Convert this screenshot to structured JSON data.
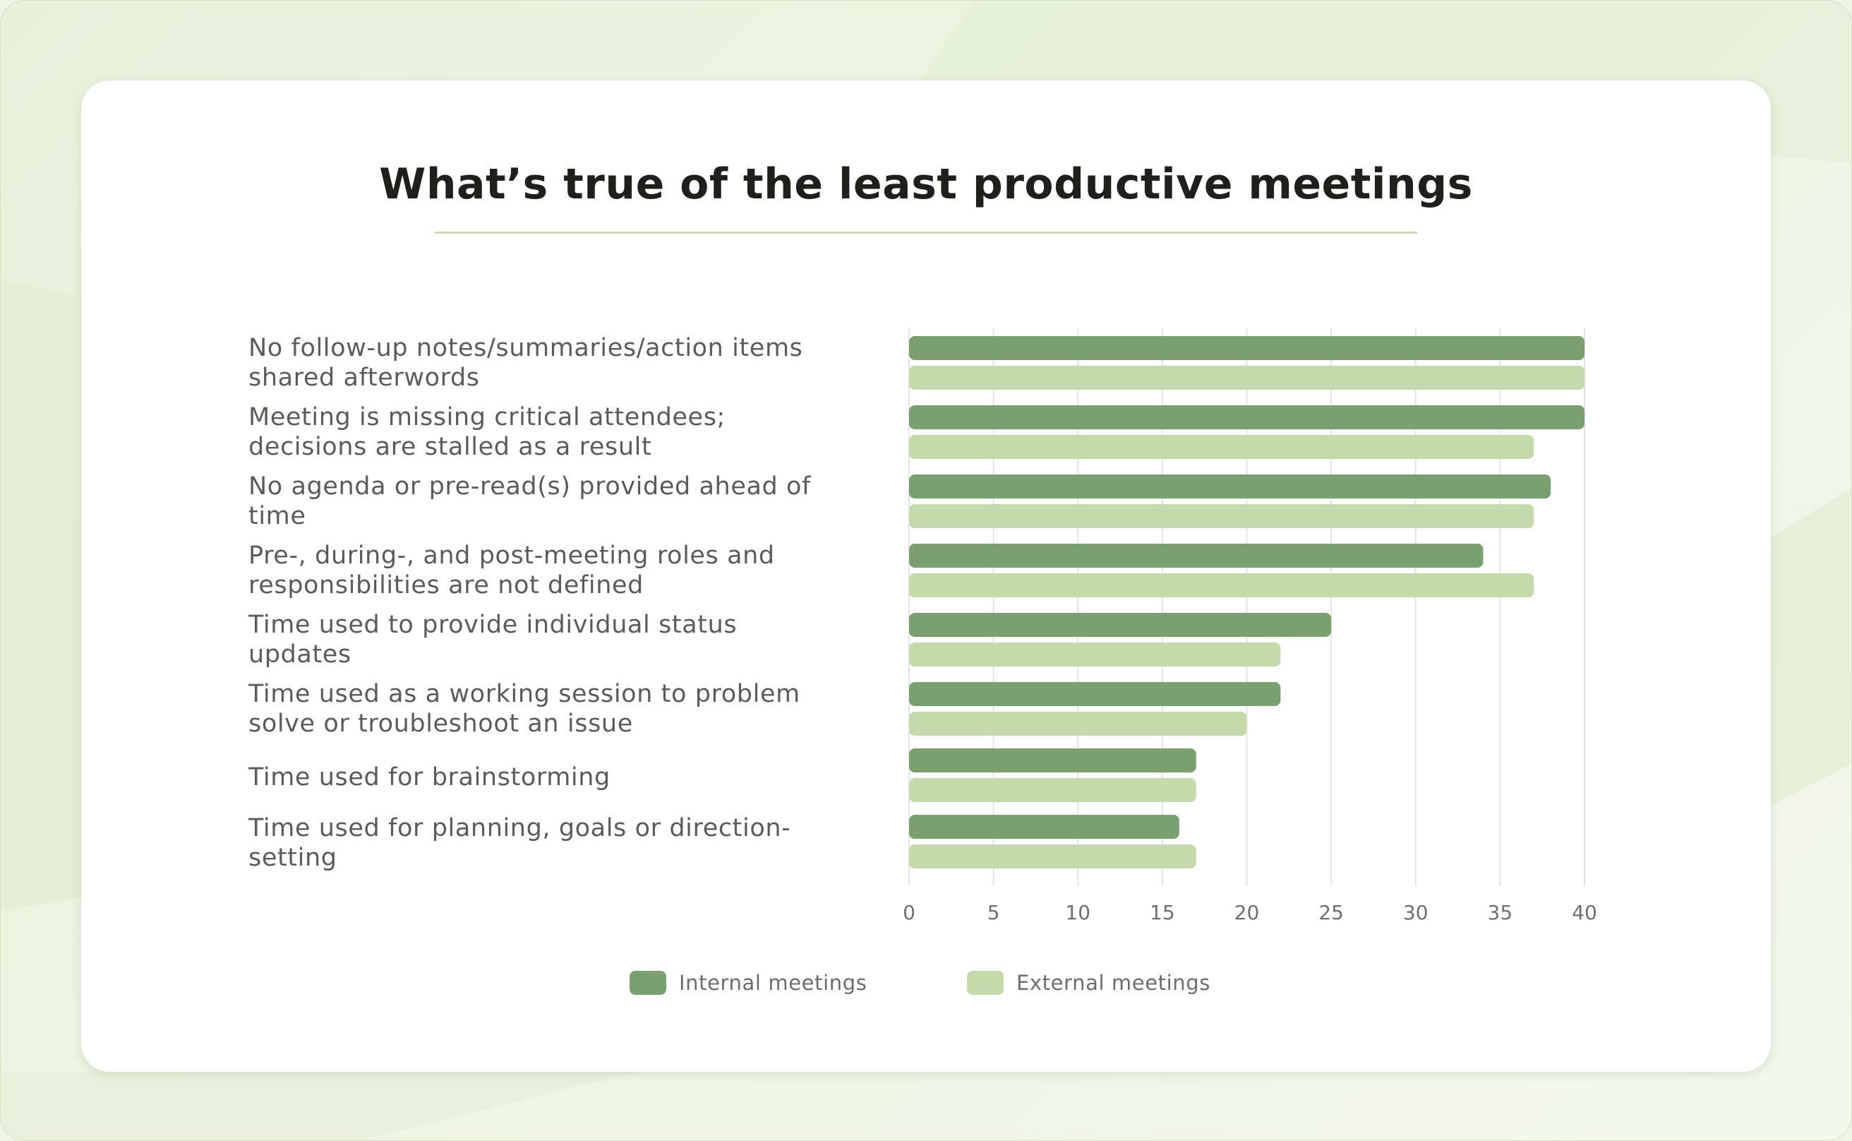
{
  "chart_data": {
    "type": "bar",
    "orientation": "horizontal",
    "title": "What’s true of the least productive meetings",
    "categories": [
      "No follow-up notes/summaries/action items shared afterwords",
      "Meeting is missing critical attendees; decisions are stalled as a result",
      "No agenda or pre-read(s) provided ahead of time",
      "Pre-, during-, and post-meeting roles and responsibilities are not defined",
      "Time used to provide individual status updates",
      "Time used as a working session to problem solve or troubleshoot an issue",
      "Time used for brainstorming",
      "Time used for planning, goals or direction-setting"
    ],
    "series": [
      {
        "name": "Internal meetings",
        "color": "#7aa070",
        "values": [
          40,
          40,
          38,
          34,
          25,
          22,
          17,
          16
        ]
      },
      {
        "name": "External meetings",
        "color": "#c5daab",
        "values": [
          40,
          37,
          37,
          37,
          22,
          20,
          17,
          17
        ]
      }
    ],
    "xlim": [
      0,
      40
    ],
    "xticks": [
      "0",
      "5",
      "10",
      "15",
      "20",
      "25",
      "30",
      "35",
      "40"
    ],
    "grid": true,
    "legend_position": "bottom"
  }
}
